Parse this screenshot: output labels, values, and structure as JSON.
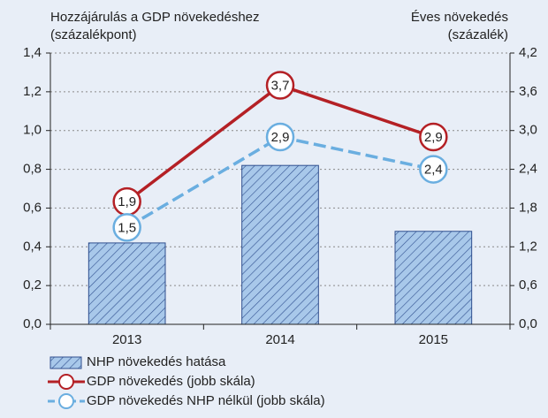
{
  "chart_data": {
    "type": "bar",
    "y_label": [
      "Hozzájárulás a GDP növekedéshez",
      "(százalékpont)"
    ],
    "y2_label": [
      "Éves növekedés",
      "(százalék)"
    ],
    "categories": [
      "2013",
      "2014",
      "2015"
    ],
    "series": [
      {
        "name": "NHP növekedés hatása",
        "type": "bar",
        "color": "#a8c8ea",
        "values": [
          0.42,
          0.82,
          0.48
        ]
      },
      {
        "name": "GDP növekedés (jobb skála)",
        "type": "line",
        "axis": "y2",
        "color": "#b42025",
        "values": [
          1.9,
          3.7,
          2.9
        ],
        "value_labels": [
          "1,9",
          "3,7",
          "2,9"
        ]
      },
      {
        "name": "GDP növekedés NHP nélkül (jobb skála)",
        "type": "line",
        "axis": "y2",
        "dashed": true,
        "color": "#6aaee0",
        "values": [
          1.5,
          2.9,
          2.4
        ],
        "value_labels": [
          "1,5",
          "2,9",
          "2,4"
        ]
      }
    ],
    "ylim": [
      0,
      1.4
    ],
    "yticks": [
      {
        "value": 0,
        "label": "0,0"
      },
      {
        "value": 0.2,
        "label": "0,2"
      },
      {
        "value": 0.4,
        "label": "0,4"
      },
      {
        "value": 0.6,
        "label": "0,6"
      },
      {
        "value": 0.8,
        "label": "0,8"
      },
      {
        "value": 1.0,
        "label": "1,0"
      },
      {
        "value": 1.2,
        "label": "1,2"
      },
      {
        "value": 1.4,
        "label": "1,4"
      }
    ],
    "y2lim": [
      0,
      4.2
    ],
    "y2ticks": [
      {
        "value": 0,
        "label": "0,0"
      },
      {
        "value": 0.6,
        "label": "0,6"
      },
      {
        "value": 1.2,
        "label": "1,2"
      },
      {
        "value": 1.8,
        "label": "1,8"
      },
      {
        "value": 2.4,
        "label": "2,4"
      },
      {
        "value": 3.0,
        "label": "3,0"
      },
      {
        "value": 3.6,
        "label": "3,6"
      },
      {
        "value": 4.2,
        "label": "4,2"
      }
    ],
    "grid": true
  }
}
